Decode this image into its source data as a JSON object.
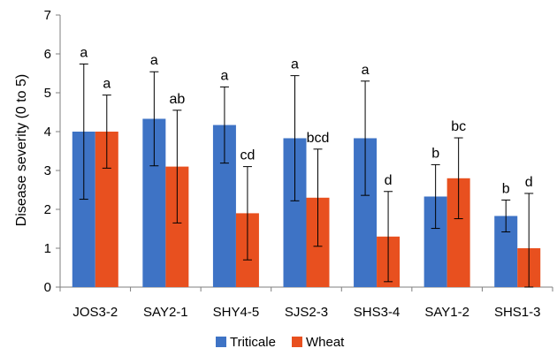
{
  "chart_data": {
    "type": "bar",
    "ylabel": "Disease severity  (0 to 5)",
    "xlabel": "",
    "ylim": [
      0,
      7
    ],
    "yticks": [
      0,
      1,
      2,
      3,
      4,
      5,
      6,
      7
    ],
    "grid": false,
    "legend_position": "bottom",
    "categories": [
      "JOS3-2",
      "SAY2-1",
      "SHY4-5",
      "SJS2-3",
      "SHS3-4",
      "SAY1-2",
      "SHS1-3"
    ],
    "series": [
      {
        "name": "Triticale",
        "color": "#3E73C5",
        "values": [
          4.0,
          4.33,
          4.17,
          3.83,
          3.83,
          2.33,
          1.83
        ],
        "error": [
          1.74,
          1.21,
          0.98,
          1.61,
          1.47,
          0.82,
          0.41
        ],
        "letters": [
          "a",
          "a",
          "a",
          "a",
          "a",
          "b",
          "b"
        ]
      },
      {
        "name": "Wheat",
        "color": "#E8501F",
        "values": [
          4.0,
          3.1,
          1.9,
          2.3,
          1.3,
          2.8,
          1.0
        ],
        "error": [
          0.94,
          1.45,
          1.2,
          1.25,
          1.16,
          1.04,
          1.41
        ],
        "letters": [
          "a",
          "ab",
          "cd",
          "bcd",
          "d",
          "bc",
          "d"
        ]
      }
    ]
  }
}
